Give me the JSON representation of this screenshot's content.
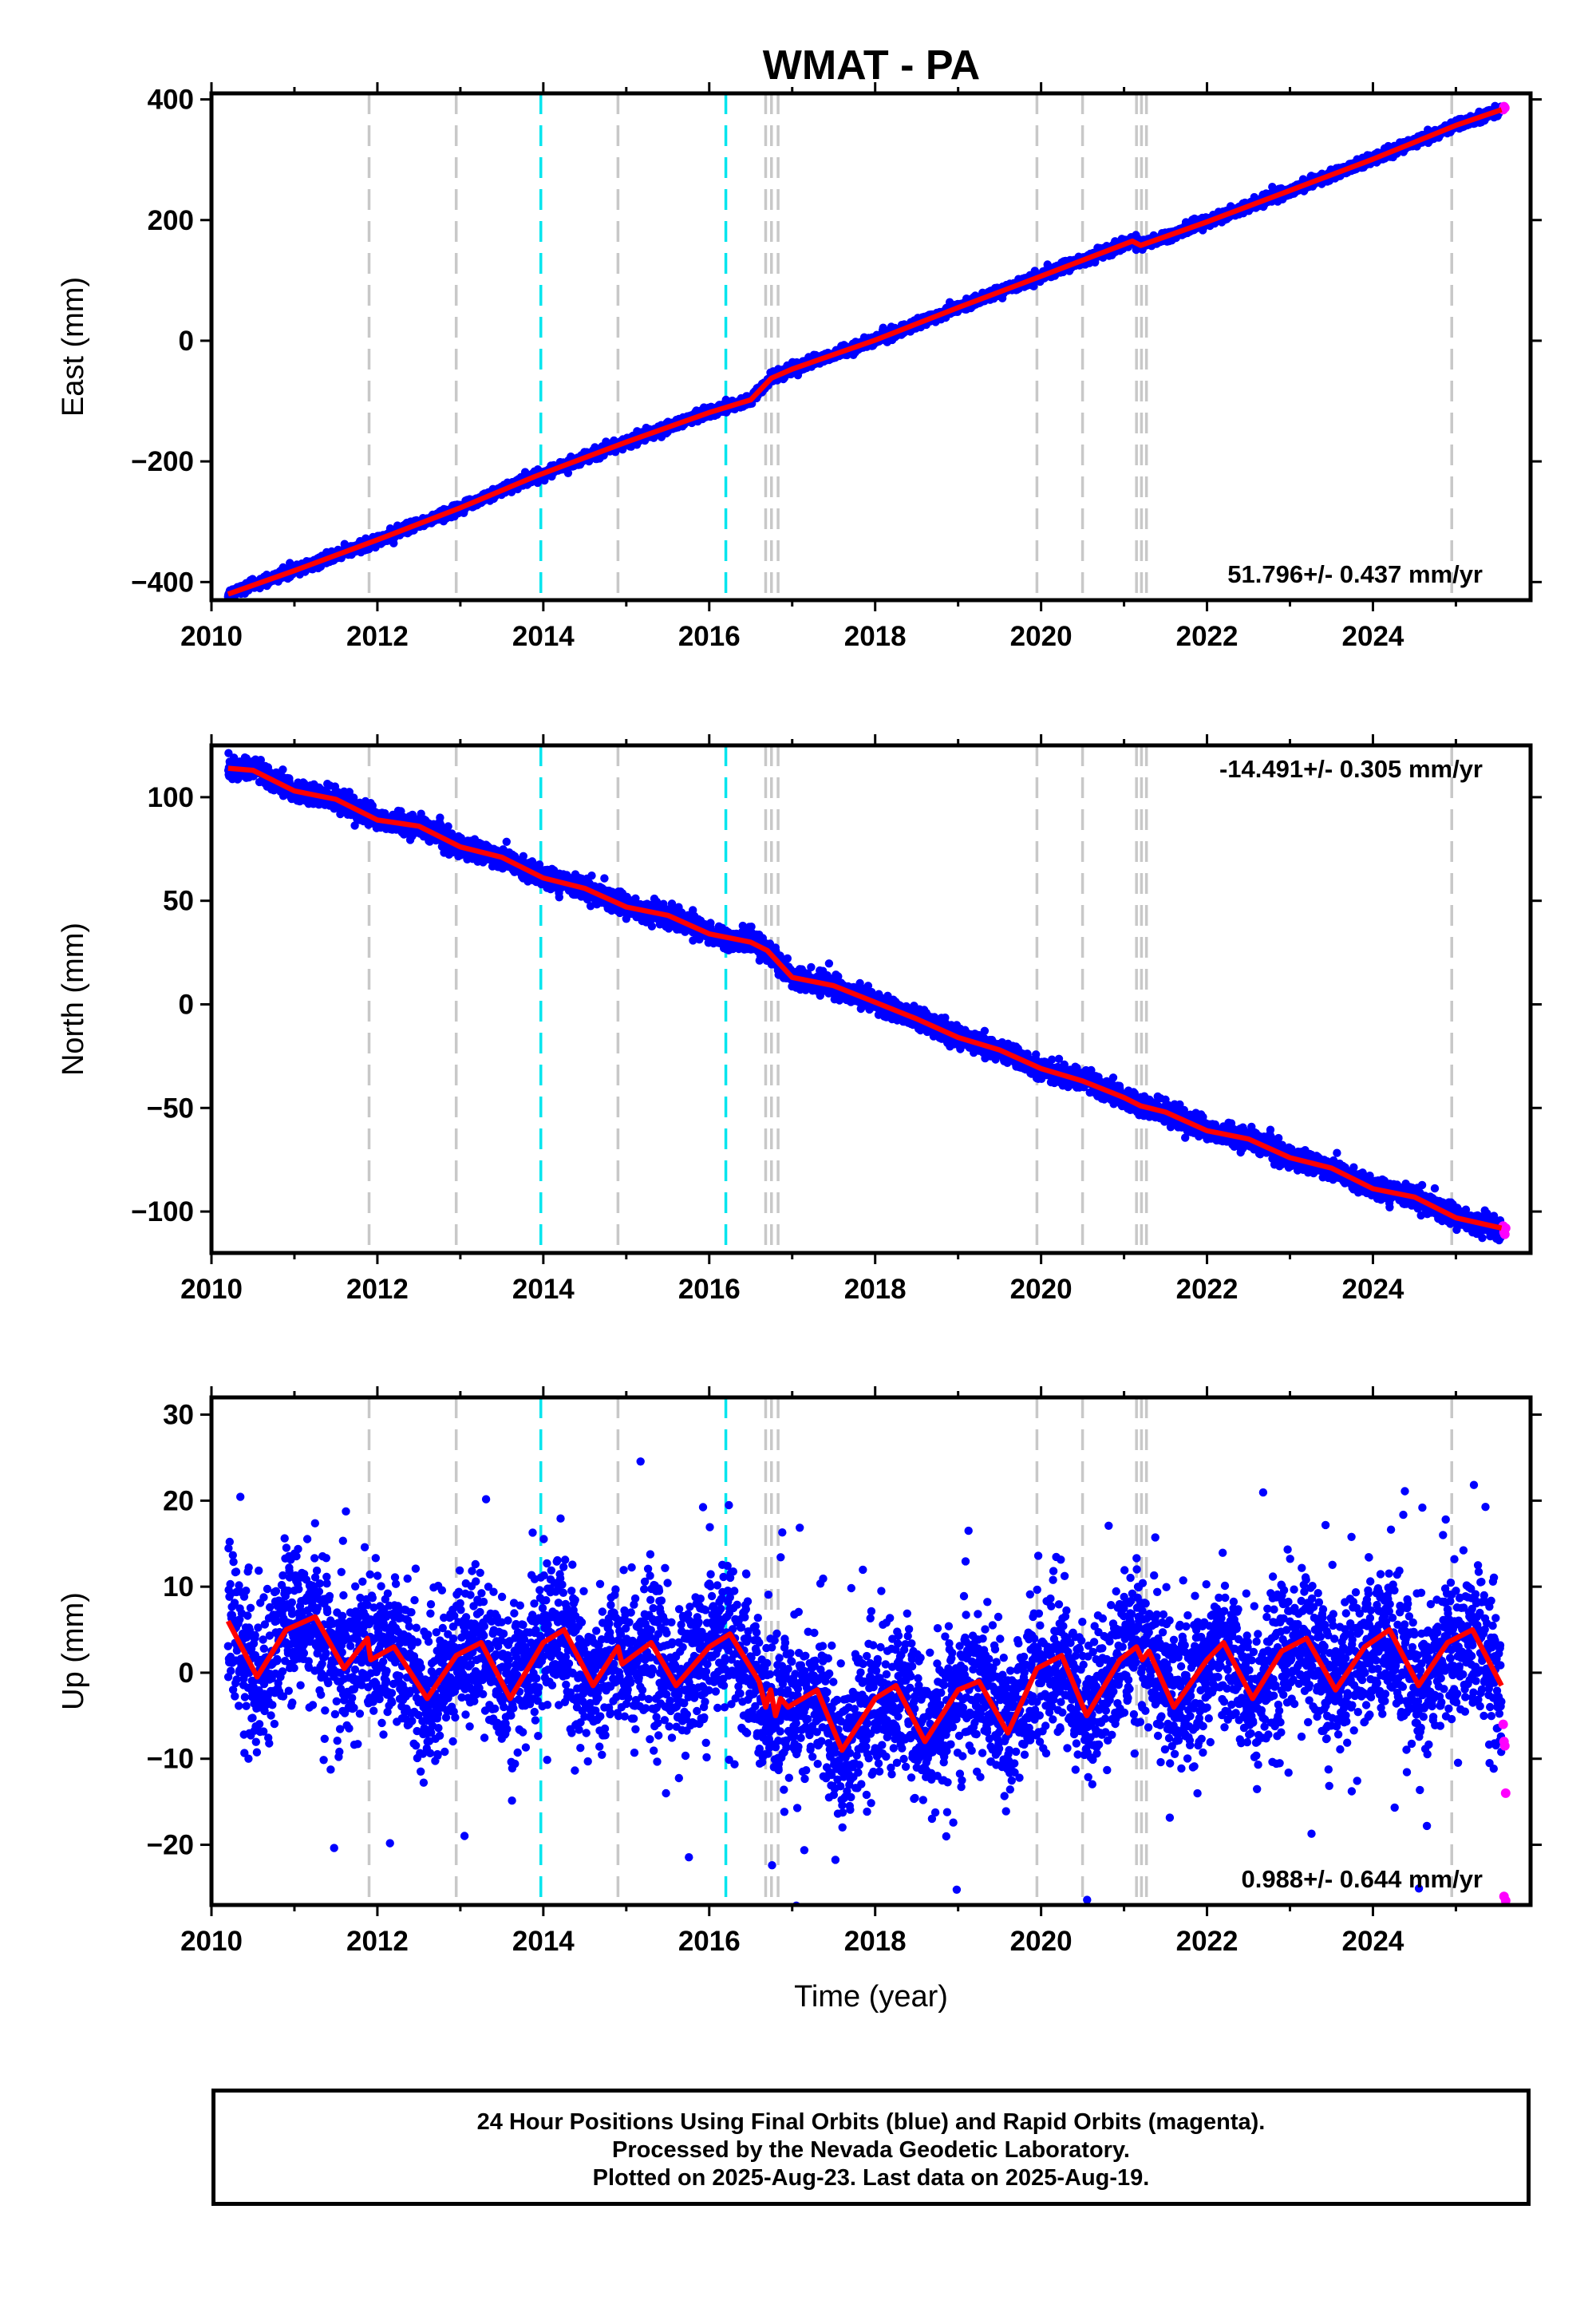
{
  "title": "WMAT - PA",
  "colors": {
    "final": "#0000ff",
    "rapid": "#ff00ff",
    "model": "#ff0000",
    "equipment": "#c8c8c8",
    "event": "#00e5ee",
    "axis": "#000000"
  },
  "footer": {
    "line1": "24 Hour Positions Using Final Orbits (blue) and Rapid Orbits (magenta).",
    "line2": "Processed by the Nevada Geodetic Laboratory.",
    "line3": "Plotted on 2025-Aug-23. Last data on 2025-Aug-19."
  },
  "chart_data": [
    {
      "type": "scatter",
      "ylabel": "East (mm)",
      "xlabel": "",
      "xlim": [
        2010.0,
        2025.9
      ],
      "ylim": [
        -430,
        410
      ],
      "yticks": [
        -400,
        -200,
        0,
        200,
        400
      ],
      "xticks": [
        2010,
        2012,
        2014,
        2016,
        2018,
        2020,
        2022,
        2024
      ],
      "rate": "51.796+/- 0.437 mm/yr",
      "rate_position": "bottom-right",
      "trend": [
        [
          2010.2,
          -420
        ],
        [
          2011.0,
          -381
        ],
        [
          2012.0,
          -330
        ],
        [
          2013.0,
          -277
        ],
        [
          2013.9,
          -225
        ],
        [
          2015.0,
          -168
        ],
        [
          2016.0,
          -119
        ],
        [
          2016.5,
          -98
        ],
        [
          2016.75,
          -62
        ],
        [
          2017.0,
          -47
        ],
        [
          2018.0,
          1
        ],
        [
          2019.0,
          55
        ],
        [
          2020.0,
          107
        ],
        [
          2021.1,
          165
        ],
        [
          2021.2,
          158
        ],
        [
          2022.0,
          197
        ],
        [
          2023.0,
          249
        ],
        [
          2024.0,
          301
        ],
        [
          2025.0,
          357
        ],
        [
          2025.55,
          383
        ]
      ],
      "rapid": [
        [
          2025.57,
          383
        ],
        [
          2025.58,
          388
        ],
        [
          2025.59,
          386
        ]
      ],
      "scatter_sd": 4,
      "equipment_changes": [
        2011.9,
        2012.95,
        2014.9,
        2016.68,
        2016.75,
        2016.83,
        2019.95,
        2020.5,
        2021.15,
        2021.21,
        2021.27,
        2024.95
      ],
      "events": [
        2013.97,
        2016.2
      ]
    },
    {
      "type": "scatter",
      "ylabel": "North (mm)",
      "xlabel": "",
      "xlim": [
        2010.0,
        2025.9
      ],
      "ylim": [
        -120,
        125
      ],
      "yticks": [
        -100,
        -50,
        0,
        50,
        100
      ],
      "xticks": [
        2010,
        2012,
        2014,
        2016,
        2018,
        2020,
        2022,
        2024
      ],
      "rate": "-14.491+/- 0.305 mm/yr",
      "rate_position": "top-right",
      "trend": [
        [
          2010.2,
          114
        ],
        [
          2010.5,
          113
        ],
        [
          2011.0,
          103
        ],
        [
          2011.5,
          99
        ],
        [
          2012.0,
          89
        ],
        [
          2012.5,
          86
        ],
        [
          2013.0,
          76
        ],
        [
          2013.5,
          71
        ],
        [
          2014.0,
          61
        ],
        [
          2014.5,
          56
        ],
        [
          2015.0,
          47
        ],
        [
          2015.5,
          43
        ],
        [
          2016.0,
          34
        ],
        [
          2016.5,
          30
        ],
        [
          2016.7,
          26
        ],
        [
          2017.0,
          13
        ],
        [
          2017.5,
          9
        ],
        [
          2018.0,
          1
        ],
        [
          2018.5,
          -7
        ],
        [
          2019.0,
          -16
        ],
        [
          2019.5,
          -22
        ],
        [
          2020.0,
          -31
        ],
        [
          2020.5,
          -37
        ],
        [
          2021.0,
          -45
        ],
        [
          2021.2,
          -49
        ],
        [
          2021.5,
          -52
        ],
        [
          2022.0,
          -61
        ],
        [
          2022.5,
          -65
        ],
        [
          2023.0,
          -74
        ],
        [
          2023.5,
          -79
        ],
        [
          2024.0,
          -89
        ],
        [
          2024.5,
          -93
        ],
        [
          2025.0,
          -103
        ],
        [
          2025.55,
          -108
        ]
      ],
      "rapid": [
        [
          2025.57,
          -107
        ],
        [
          2025.58,
          -110
        ],
        [
          2025.59,
          -111
        ],
        [
          2025.6,
          -108
        ]
      ],
      "scatter_sd": 2.4,
      "equipment_changes": [
        2011.9,
        2012.95,
        2014.9,
        2016.68,
        2016.75,
        2016.83,
        2019.95,
        2020.5,
        2021.15,
        2021.21,
        2021.27,
        2024.95
      ],
      "events": [
        2013.97,
        2016.2
      ]
    },
    {
      "type": "scatter",
      "ylabel": "Up (mm)",
      "xlabel": "Time (year)",
      "xlim": [
        2010.0,
        2025.9
      ],
      "ylim": [
        -27,
        32
      ],
      "yticks": [
        -20,
        -10,
        0,
        10,
        20,
        30
      ],
      "xticks": [
        2010,
        2012,
        2014,
        2016,
        2018,
        2020,
        2022,
        2024
      ],
      "rate": "0.988+/- 0.644 mm/yr",
      "rate_position": "bottom-right",
      "trend": [
        [
          2010.2,
          6
        ],
        [
          2010.55,
          -0.5
        ],
        [
          2010.9,
          5
        ],
        [
          2011.25,
          6.5
        ],
        [
          2011.6,
          0.5
        ],
        [
          2011.88,
          4
        ],
        [
          2011.92,
          1.5
        ],
        [
          2012.2,
          3
        ],
        [
          2012.6,
          -3
        ],
        [
          2012.95,
          2
        ],
        [
          2013.25,
          3.5
        ],
        [
          2013.6,
          -3
        ],
        [
          2014.0,
          3.5
        ],
        [
          2014.25,
          5
        ],
        [
          2014.6,
          -1.5
        ],
        [
          2014.9,
          3
        ],
        [
          2014.95,
          1
        ],
        [
          2015.3,
          3.5
        ],
        [
          2015.6,
          -1.5
        ],
        [
          2016.0,
          3
        ],
        [
          2016.25,
          4.5
        ],
        [
          2016.6,
          -1
        ],
        [
          2016.68,
          -4
        ],
        [
          2016.74,
          -2
        ],
        [
          2016.8,
          -5
        ],
        [
          2016.86,
          -3
        ],
        [
          2016.95,
          -4
        ],
        [
          2017.3,
          -2
        ],
        [
          2017.6,
          -9
        ],
        [
          2018.0,
          -3
        ],
        [
          2018.25,
          -1.5
        ],
        [
          2018.6,
          -8
        ],
        [
          2019.0,
          -2
        ],
        [
          2019.25,
          -1
        ],
        [
          2019.6,
          -7
        ],
        [
          2019.95,
          0.5
        ],
        [
          2020.25,
          2
        ],
        [
          2020.55,
          -5
        ],
        [
          2020.95,
          1.5
        ],
        [
          2021.15,
          3
        ],
        [
          2021.22,
          1.5
        ],
        [
          2021.3,
          2.5
        ],
        [
          2021.6,
          -4
        ],
        [
          2022.0,
          1.5
        ],
        [
          2022.2,
          3.5
        ],
        [
          2022.55,
          -3
        ],
        [
          2022.9,
          2.5
        ],
        [
          2023.2,
          4
        ],
        [
          2023.55,
          -2
        ],
        [
          2023.9,
          3
        ],
        [
          2024.2,
          5
        ],
        [
          2024.55,
          -1.5
        ],
        [
          2024.9,
          3.5
        ],
        [
          2025.2,
          5
        ],
        [
          2025.55,
          -1.5
        ]
      ],
      "rapid": [
        [
          2025.57,
          -6
        ],
        [
          2025.58,
          -8
        ],
        [
          2025.59,
          -8.5
        ],
        [
          2025.6,
          -14
        ],
        [
          2025.58,
          -26
        ],
        [
          2025.6,
          -26.5
        ]
      ],
      "scatter_sd": 4.2,
      "equipment_changes": [
        2011.9,
        2012.95,
        2014.9,
        2016.68,
        2016.75,
        2016.83,
        2019.95,
        2020.5,
        2021.15,
        2021.21,
        2021.27,
        2024.95
      ],
      "events": [
        2013.97,
        2016.2
      ]
    }
  ]
}
